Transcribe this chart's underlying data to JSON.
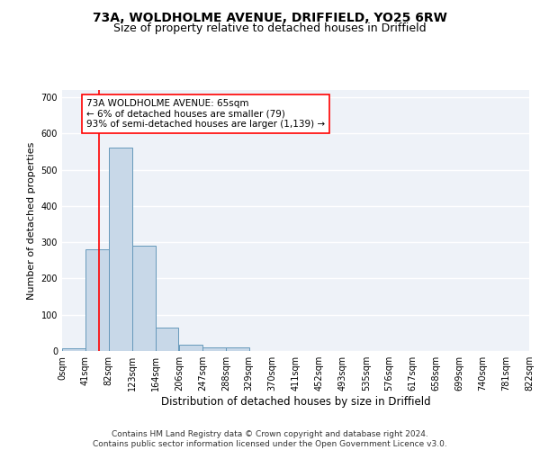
{
  "title1": "73A, WOLDHOLME AVENUE, DRIFFIELD, YO25 6RW",
  "title2": "Size of property relative to detached houses in Driffield",
  "xlabel": "Distribution of detached houses by size in Driffield",
  "ylabel": "Number of detached properties",
  "bin_edges": [
    0,
    41,
    82,
    123,
    164,
    206,
    247,
    288,
    329,
    370,
    411,
    452,
    493,
    535,
    576,
    617,
    658,
    699,
    740,
    781,
    822
  ],
  "bin_labels": [
    "0sqm",
    "41sqm",
    "82sqm",
    "123sqm",
    "164sqm",
    "206sqm",
    "247sqm",
    "288sqm",
    "329sqm",
    "370sqm",
    "411sqm",
    "452sqm",
    "493sqm",
    "535sqm",
    "576sqm",
    "617sqm",
    "658sqm",
    "699sqm",
    "740sqm",
    "781sqm",
    "822sqm"
  ],
  "bar_heights": [
    8,
    280,
    560,
    290,
    65,
    18,
    10,
    10,
    0,
    0,
    0,
    0,
    0,
    0,
    0,
    0,
    0,
    0,
    0,
    0
  ],
  "bar_color": "#c8d8e8",
  "bar_edge_color": "#6699bb",
  "vline_x": 65,
  "vline_color": "red",
  "annotation_lines": [
    "73A WOLDHOLME AVENUE: 65sqm",
    "← 6% of detached houses are smaller (79)",
    "93% of semi-detached houses are larger (1,139) →"
  ],
  "annotation_box_color": "white",
  "annotation_box_edge_color": "red",
  "ylim": [
    0,
    720
  ],
  "yticks": [
    0,
    100,
    200,
    300,
    400,
    500,
    600,
    700
  ],
  "background_color": "#eef2f8",
  "footer_line1": "Contains HM Land Registry data © Crown copyright and database right 2024.",
  "footer_line2": "Contains public sector information licensed under the Open Government Licence v3.0.",
  "title1_fontsize": 10,
  "title2_fontsize": 9,
  "annotation_fontsize": 7.5,
  "tick_fontsize": 7,
  "xlabel_fontsize": 8.5,
  "ylabel_fontsize": 8,
  "footer_fontsize": 6.5
}
